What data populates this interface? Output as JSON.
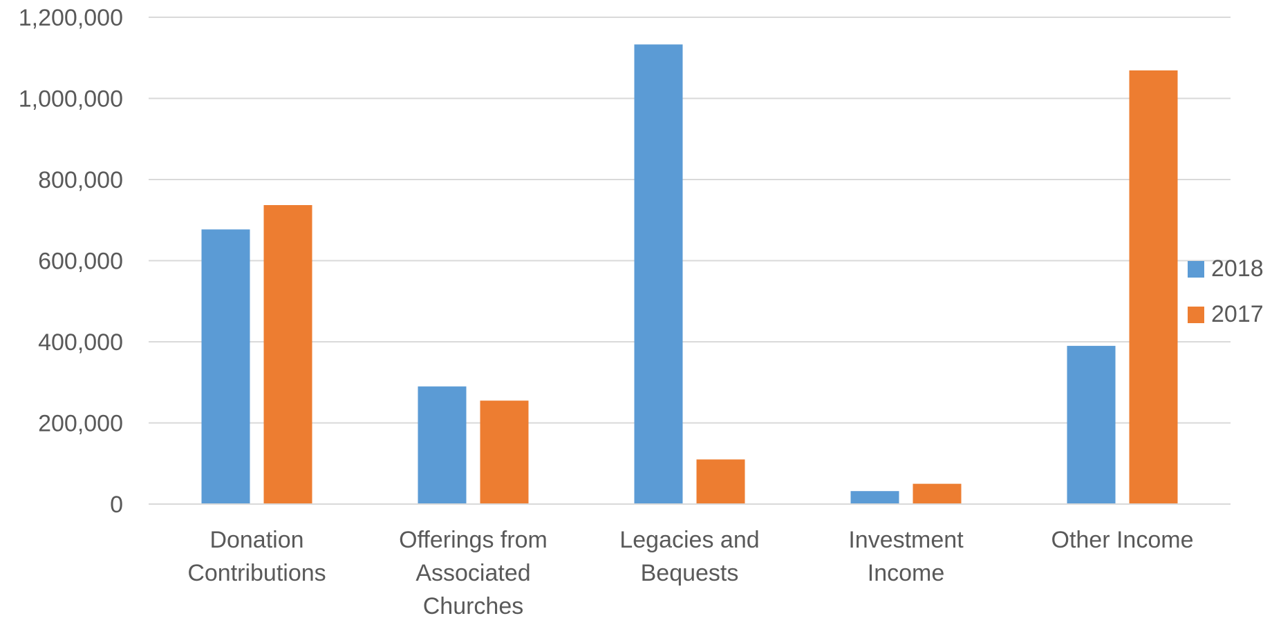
{
  "chart_data": {
    "type": "bar",
    "categories": [
      [
        "Donation",
        "Contributions"
      ],
      [
        "Offerings from",
        "Associated",
        "Churches"
      ],
      [
        "Legacies and",
        "Bequests"
      ],
      [
        "Investment",
        "Income"
      ],
      [
        "Other Income"
      ]
    ],
    "series": [
      {
        "name": "2018",
        "color": "#5b9bd5",
        "values": [
          677000,
          290000,
          1133000,
          32000,
          390000
        ]
      },
      {
        "name": "2017",
        "color": "#ed7d31",
        "values": [
          737000,
          255000,
          110000,
          50000,
          1069000
        ]
      }
    ],
    "y_ticks": [
      "0",
      "200,000",
      "400,000",
      "600,000",
      "800,000",
      "1,000,000",
      "1,200,000"
    ],
    "ylim": [
      0,
      1200000
    ],
    "grid": true,
    "legend_position": "right"
  }
}
